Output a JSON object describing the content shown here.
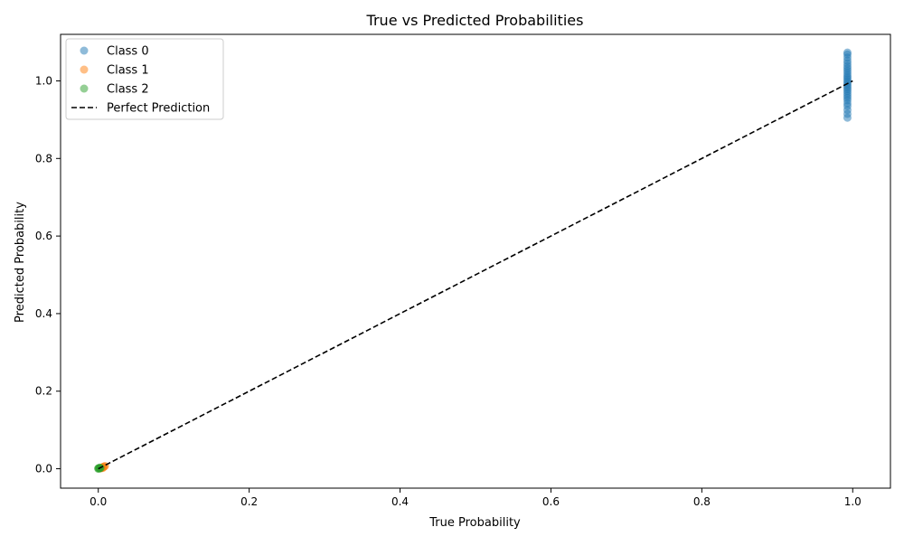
{
  "chart_data": {
    "type": "scatter",
    "title": "True vs Predicted Probabilities",
    "xlabel": "True Probability",
    "ylabel": "Predicted Probability",
    "xlim": [
      -0.05,
      1.05
    ],
    "ylim": [
      -0.05,
      1.12
    ],
    "x_ticks": [
      0.0,
      0.2,
      0.4,
      0.6,
      0.8,
      1.0
    ],
    "y_ticks": [
      0.0,
      0.2,
      0.4,
      0.6,
      0.8,
      1.0
    ],
    "x_tick_labels": [
      "0.0",
      "0.2",
      "0.4",
      "0.6",
      "0.8",
      "1.0"
    ],
    "y_tick_labels": [
      "0.0",
      "0.2",
      "0.4",
      "0.6",
      "0.8",
      "1.0"
    ],
    "grid": false,
    "legend_position": "top-left",
    "series": [
      {
        "name": "Class 0",
        "color": "#1f77b4",
        "points": [
          [
            0.993,
            0.905
          ],
          [
            0.993,
            0.915
          ],
          [
            0.993,
            0.925
          ],
          [
            0.993,
            0.935
          ],
          [
            0.993,
            0.942
          ],
          [
            0.993,
            0.95
          ],
          [
            0.993,
            0.956
          ],
          [
            0.993,
            0.962
          ],
          [
            0.993,
            0.968
          ],
          [
            0.993,
            0.974
          ],
          [
            0.993,
            0.979
          ],
          [
            0.993,
            0.984
          ],
          [
            0.993,
            0.989
          ],
          [
            0.993,
            0.994
          ],
          [
            0.993,
            0.999
          ],
          [
            0.993,
            1.004
          ],
          [
            0.993,
            1.009
          ],
          [
            0.993,
            1.014
          ],
          [
            0.993,
            1.02
          ],
          [
            0.993,
            1.026
          ],
          [
            0.993,
            1.032
          ],
          [
            0.993,
            1.038
          ],
          [
            0.993,
            1.045
          ],
          [
            0.993,
            1.052
          ],
          [
            0.993,
            1.06
          ],
          [
            0.993,
            1.068
          ],
          [
            0.993,
            1.073
          ]
        ]
      },
      {
        "name": "Class 1",
        "color": "#ff7f0e",
        "points": [
          [
            0.004,
            0.002
          ],
          [
            0.006,
            0.004
          ],
          [
            0.008,
            0.006
          ],
          [
            0.005,
            0.003
          ],
          [
            0.007,
            0.005
          ],
          [
            0.003,
            0.001
          ],
          [
            0.009,
            0.007
          ],
          [
            0.006,
            0.002
          ]
        ]
      },
      {
        "name": "Class 2",
        "color": "#2ca02c",
        "points": [
          [
            0.0,
            0.0
          ],
          [
            0.001,
            0.001
          ],
          [
            0.002,
            0.001
          ],
          [
            0.001,
            0.002
          ],
          [
            0.003,
            0.002
          ],
          [
            0.002,
            0.003
          ],
          [
            0.0,
            0.001
          ]
        ]
      }
    ],
    "reference_line": {
      "name": "Perfect Prediction",
      "color": "#000000",
      "style": "dashed",
      "x": [
        0.0,
        1.0
      ],
      "y": [
        0.0,
        1.0
      ]
    }
  }
}
